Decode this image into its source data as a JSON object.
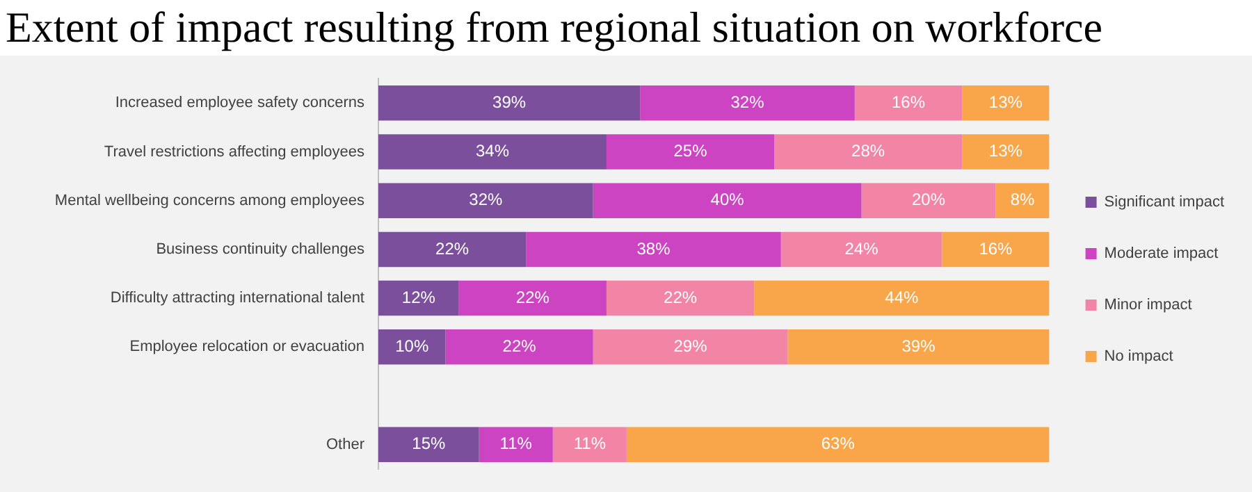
{
  "chart_data": {
    "type": "bar",
    "title": "Extent of impact resulting from regional situation on workforce",
    "orientation": "horizontal",
    "stacked": true,
    "tick_labels": "y",
    "legend": "right",
    "grid": false,
    "categories": [
      "Increased employee safety concerns",
      "Travel restrictions affecting employees",
      "Mental wellbeing concerns among employees",
      "Business continuity challenges",
      "Difficulty attracting international talent",
      "Employee relocation or evacuation",
      null,
      "Other"
    ],
    "series": [
      {
        "name": "Significant impact",
        "color": "#7b4f9b",
        "values": [
          39,
          34,
          32,
          22,
          12,
          10,
          null,
          15
        ],
        "value_labels": [
          "39%",
          "34%",
          "32%",
          "22%",
          "12%",
          "10%",
          null,
          "15%"
        ]
      },
      {
        "name": "Moderate impact",
        "color": "#cc44c2",
        "values": [
          32,
          25,
          40,
          38,
          22,
          22,
          null,
          11
        ],
        "value_labels": [
          "32%",
          "25%",
          "40%",
          "38%",
          "22%",
          "22%",
          null,
          "11%"
        ]
      },
      {
        "name": "Minor impact",
        "color": "#f285a6",
        "values": [
          16,
          28,
          20,
          24,
          22,
          29,
          null,
          11
        ],
        "value_labels": [
          "16%",
          "28%",
          "20%",
          "24%",
          "22%",
          "29%",
          null,
          "11%"
        ]
      },
      {
        "name": "No impact",
        "color": "#f9a64a",
        "values": [
          13,
          13,
          8,
          16,
          44,
          39,
          null,
          63
        ],
        "value_labels": [
          "13%",
          "13%",
          "8%",
          "16%",
          "44%",
          "39%",
          null,
          "63%"
        ]
      }
    ]
  }
}
